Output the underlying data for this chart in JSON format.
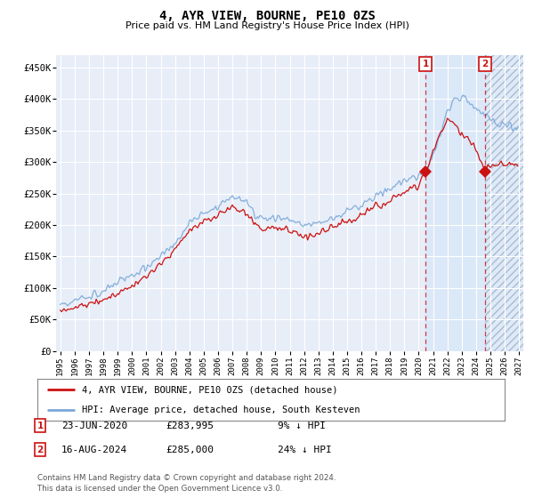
{
  "title": "4, AYR VIEW, BOURNE, PE10 0ZS",
  "subtitle": "Price paid vs. HM Land Registry's House Price Index (HPI)",
  "ylabel_ticks": [
    "£0",
    "£50K",
    "£100K",
    "£150K",
    "£200K",
    "£250K",
    "£300K",
    "£350K",
    "£400K",
    "£450K"
  ],
  "ytick_values": [
    0,
    50000,
    100000,
    150000,
    200000,
    250000,
    300000,
    350000,
    400000,
    450000
  ],
  "ylim": [
    0,
    470000
  ],
  "xlim_start": 1994.7,
  "xlim_end": 2027.3,
  "hpi_color": "#7aa8d8",
  "price_color": "#cc1111",
  "marker1_x": 2020.47,
  "marker1_y": 283995,
  "marker2_x": 2024.62,
  "marker2_y": 285000,
  "shade_start": 2020.47,
  "shade_end": 2024.62,
  "hatch_start": 2024.62,
  "hatch_end": 2027.3,
  "annotation1": {
    "label": "1",
    "date": "23-JUN-2020",
    "price": "£283,995",
    "pct": "9% ↓ HPI"
  },
  "annotation2": {
    "label": "2",
    "date": "16-AUG-2024",
    "price": "£285,000",
    "pct": "24% ↓ HPI"
  },
  "legend_line1": "4, AYR VIEW, BOURNE, PE10 0ZS (detached house)",
  "legend_line2": "HPI: Average price, detached house, South Kesteven",
  "footer": "Contains HM Land Registry data © Crown copyright and database right 2024.\nThis data is licensed under the Open Government Licence v3.0.",
  "background_color": "#ffffff",
  "plot_bg_color": "#e8eef8",
  "grid_color": "#ffffff",
  "x_ticks": [
    1995,
    1996,
    1997,
    1998,
    1999,
    2000,
    2001,
    2002,
    2003,
    2004,
    2005,
    2006,
    2007,
    2008,
    2009,
    2010,
    2011,
    2012,
    2013,
    2014,
    2015,
    2016,
    2017,
    2018,
    2019,
    2020,
    2021,
    2022,
    2023,
    2024,
    2025,
    2026,
    2027
  ]
}
